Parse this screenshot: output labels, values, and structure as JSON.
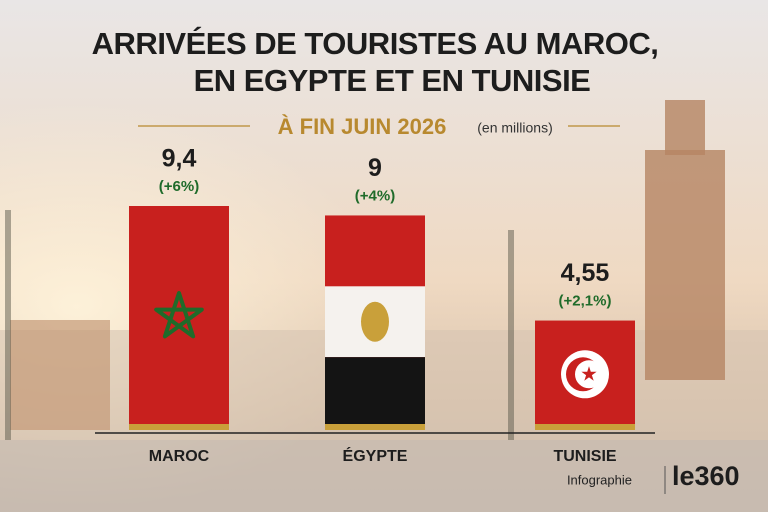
{
  "chart_data": {
    "type": "bar",
    "title": [
      "ARRIVÉES DE TOURISTES AU MAROC,",
      "EN EGYPTE ET EN TUNISIE"
    ],
    "subtitle": "À FIN JUIN 2026",
    "unit": "(en millions)",
    "categories": [
      "MAROC",
      "ÉGYPTE",
      "TUNISIE"
    ],
    "values": [
      9.4,
      9,
      4.55
    ],
    "value_labels": [
      "9,4",
      "9",
      "4,55"
    ],
    "changes": [
      "(+6%)",
      "(+4%)",
      "(+2,1%)"
    ],
    "color": "#c8201e",
    "footer": {
      "label": "Infographie",
      "brand": "le360"
    }
  }
}
